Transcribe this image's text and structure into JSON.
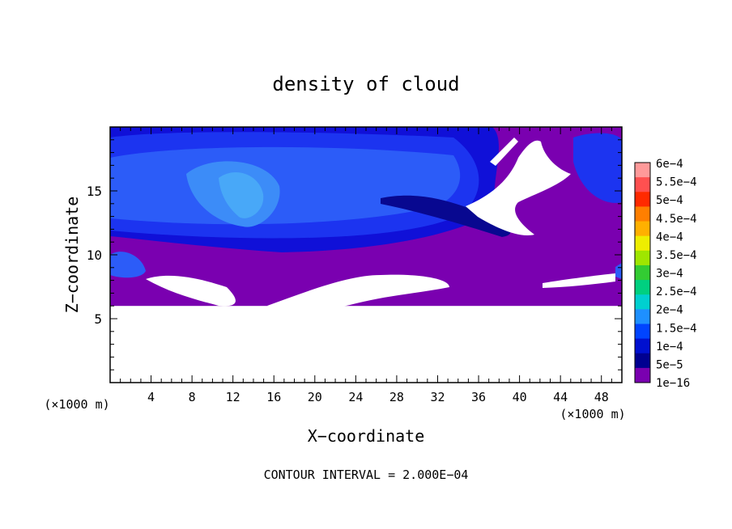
{
  "chart_data": {
    "type": "heatmap",
    "title": "density of cloud",
    "xlabel": "X−coordinate",
    "ylabel": "Z−coordinate",
    "x_unit_left": "(×1000 m)",
    "x_unit_right": "(×1000 m)",
    "xlim": [
      0,
      50
    ],
    "ylim": [
      0,
      20
    ],
    "x_ticks": [
      4,
      8,
      12,
      16,
      20,
      24,
      28,
      32,
      36,
      40,
      44,
      48
    ],
    "y_ticks": [
      5,
      10,
      15
    ],
    "footer": "CONTOUR INTERVAL = 2.000E−04",
    "colorbar": {
      "labels": [
        "6e−4",
        "5.5e−4",
        "5e−4",
        "4.5e−4",
        "4e−4",
        "3.5e−4",
        "3e−4",
        "2.5e−4",
        "2e−4",
        "1.5e−4",
        "1e−4",
        "5e−5",
        "1e−16"
      ],
      "colors": [
        "#ff9a9a",
        "#ff5050",
        "#ff2a00",
        "#ff7f00",
        "#ffb000",
        "#eeee00",
        "#9fe600",
        "#33cc33",
        "#00d080",
        "#00d0d0",
        "#1e90ff",
        "#0044ff",
        "#0010d0",
        "#000090",
        "#7a00b0"
      ]
    },
    "fields": {
      "purple_background": "#7a00b0",
      "deep_blue": "#1010d8",
      "blue": "#1c34f0",
      "mid_blue": "#2c5cf8",
      "light_blue": "#3c8cf8",
      "cyan_blue": "#48a8f8",
      "dark_navy": "#080890",
      "white_gaps": "#ffffff"
    }
  }
}
